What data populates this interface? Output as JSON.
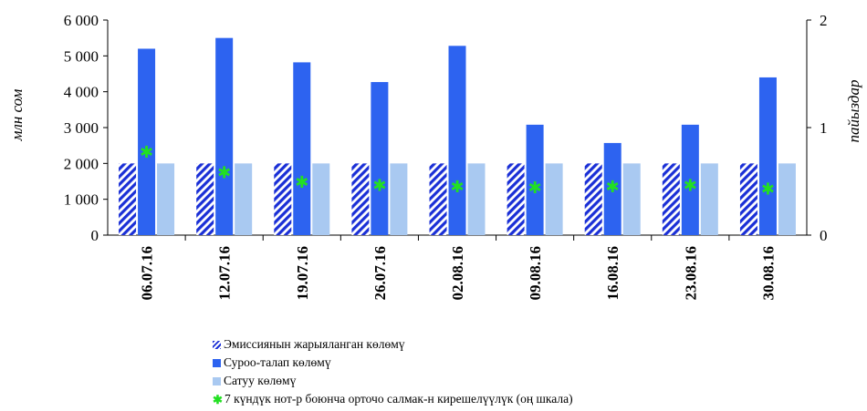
{
  "chart_data": {
    "type": "bar",
    "categories": [
      "06.07.16",
      "12.07.16",
      "19.07.16",
      "26.07.16",
      "02.08.16",
      "09.08.16",
      "16.08.16",
      "23.08.16",
      "30.08.16"
    ],
    "series": [
      {
        "name": "Эмиссиянын жарыяланган көлөмү",
        "axis": "left",
        "color": "#1a2fd6",
        "pattern": "hatched",
        "values": [
          2000,
          2000,
          2000,
          2000,
          2000,
          2000,
          2000,
          2000,
          2000
        ]
      },
      {
        "name": "Суроо-талап көлөмү",
        "axis": "left",
        "color": "#2d63f0",
        "values": [
          5200,
          5500,
          4820,
          4270,
          5280,
          3080,
          2570,
          3080,
          4400
        ]
      },
      {
        "name": "Сатуу көлөмү",
        "axis": "left",
        "color": "#a9c9f1",
        "values": [
          2000,
          2000,
          2000,
          2000,
          2000,
          2000,
          2000,
          2000,
          2000
        ]
      },
      {
        "name": "7 күндүк нот-р боюнча орточо салмак-н кирешелүүлүк (оң шкала)",
        "axis": "right",
        "type": "scatter",
        "marker": "star",
        "color": "#22e022",
        "values": [
          0.77,
          0.58,
          0.49,
          0.46,
          0.45,
          0.44,
          0.45,
          0.46,
          0.43
        ]
      }
    ],
    "ylabel": "млн сом",
    "ylabel_right": "пайыздар",
    "ylim": [
      0,
      6000
    ],
    "ylim_right": [
      0,
      2
    ],
    "yticks": [
      "0",
      "1 000",
      "2 000",
      "3 000",
      "4 000",
      "5 000",
      "6 000"
    ],
    "yticks_right": [
      "0",
      "1",
      "2"
    ],
    "grid": false,
    "legend_position": "bottom"
  }
}
